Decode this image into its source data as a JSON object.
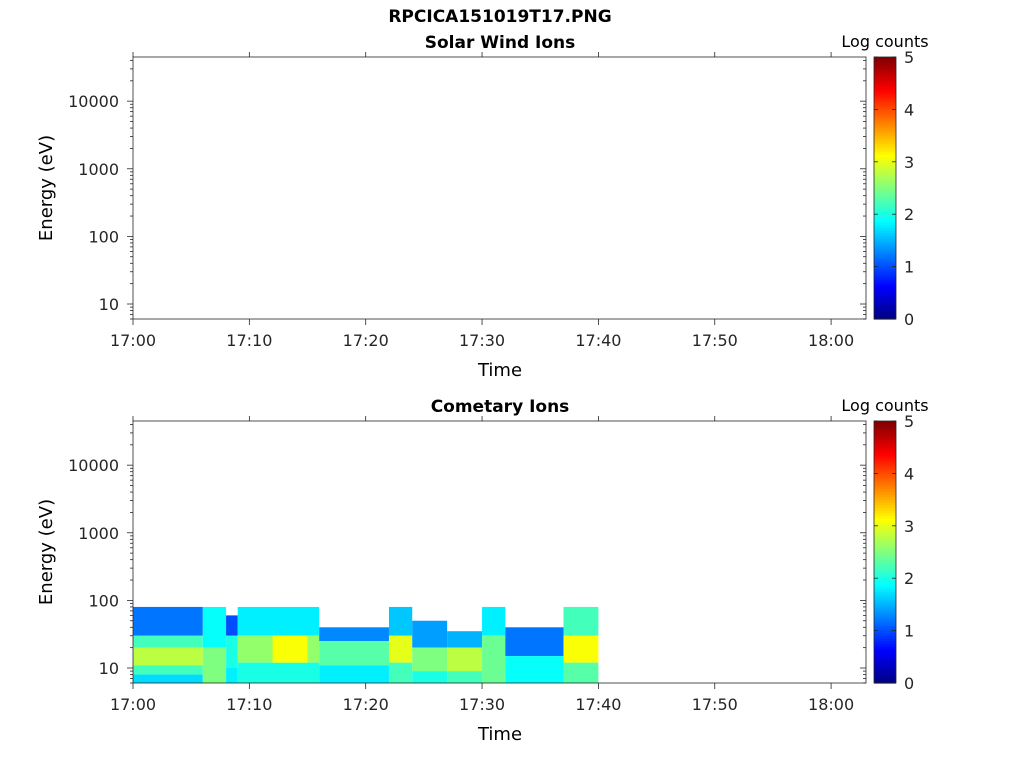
{
  "figure": {
    "title": "RPCICA151019T17.PNG"
  },
  "colors": {
    "colormap": [
      "#00007f",
      "#0000ff",
      "#007fff",
      "#00ffff",
      "#7fff7f",
      "#ffff00",
      "#ff7f00",
      "#ff0000",
      "#7f0000"
    ],
    "axis": "#262626"
  },
  "chart_data": [
    {
      "type": "heatmap",
      "title": "Solar Wind Ions",
      "xlabel": "Time",
      "ylabel": "Energy (eV)",
      "yscale": "log",
      "xlim": [
        "17:00",
        "18:03"
      ],
      "ylim": [
        6,
        45000
      ],
      "xticks": [
        "17:00",
        "17:10",
        "17:20",
        "17:30",
        "17:40",
        "17:50",
        "18:00"
      ],
      "yticks": [
        "10",
        "100",
        "1000",
        "10000"
      ],
      "colorbar": {
        "label": "Log counts",
        "range": [
          0,
          5
        ],
        "ticks": [
          "0",
          "1",
          "2",
          "3",
          "4",
          "5"
        ]
      },
      "cells": []
    },
    {
      "type": "heatmap",
      "title": "Cometary Ions",
      "xlabel": "Time",
      "ylabel": "Energy (eV)",
      "yscale": "log",
      "xlim": [
        "17:00",
        "18:03"
      ],
      "ylim": [
        6,
        45000
      ],
      "xticks": [
        "17:00",
        "17:10",
        "17:20",
        "17:30",
        "17:40",
        "17:50",
        "18:00"
      ],
      "yticks": [
        "10",
        "100",
        "1000",
        "10000"
      ],
      "colorbar": {
        "label": "Log counts",
        "range": [
          0,
          5
        ],
        "ticks": [
          "0",
          "1",
          "2",
          "3",
          "4",
          "5"
        ]
      },
      "cells": [
        {
          "t0": "17:00",
          "t1": "17:06",
          "e0": 30,
          "e1": 80,
          "log_counts": 1.2
        },
        {
          "t0": "17:00",
          "t1": "17:06",
          "e0": 20,
          "e1": 30,
          "log_counts": 2.2
        },
        {
          "t0": "17:00",
          "t1": "17:06",
          "e0": 11,
          "e1": 20,
          "log_counts": 2.8
        },
        {
          "t0": "17:00",
          "t1": "17:06",
          "e0": 8,
          "e1": 11,
          "log_counts": 2.2
        },
        {
          "t0": "17:00",
          "t1": "17:06",
          "e0": 6,
          "e1": 8,
          "log_counts": 1.7
        },
        {
          "t0": "17:06",
          "t1": "17:08",
          "e0": 20,
          "e1": 80,
          "log_counts": 1.9
        },
        {
          "t0": "17:06",
          "t1": "17:08",
          "e0": 6,
          "e1": 20,
          "log_counts": 2.5
        },
        {
          "t0": "17:08",
          "t1": "17:09",
          "e0": 30,
          "e1": 60,
          "log_counts": 1.0
        },
        {
          "t0": "17:08",
          "t1": "17:09",
          "e0": 10,
          "e1": 30,
          "log_counts": 2.0
        },
        {
          "t0": "17:08",
          "t1": "17:09",
          "e0": 6,
          "e1": 10,
          "log_counts": 1.8
        },
        {
          "t0": "17:09",
          "t1": "17:16",
          "e0": 30,
          "e1": 80,
          "log_counts": 1.8
        },
        {
          "t0": "17:09",
          "t1": "17:16",
          "e0": 12,
          "e1": 30,
          "log_counts": 2.6
        },
        {
          "t0": "17:09",
          "t1": "17:16",
          "e0": 6,
          "e1": 12,
          "log_counts": 2.0
        },
        {
          "t0": "17:12",
          "t1": "17:15",
          "e0": 12,
          "e1": 30,
          "log_counts": 3.1
        },
        {
          "t0": "17:16",
          "t1": "17:22",
          "e0": 25,
          "e1": 40,
          "log_counts": 1.3
        },
        {
          "t0": "17:16",
          "t1": "17:22",
          "e0": 11,
          "e1": 25,
          "log_counts": 2.3
        },
        {
          "t0": "17:16",
          "t1": "17:22",
          "e0": 6,
          "e1": 11,
          "log_counts": 1.8
        },
        {
          "t0": "17:22",
          "t1": "17:24",
          "e0": 30,
          "e1": 80,
          "log_counts": 1.6
        },
        {
          "t0": "17:22",
          "t1": "17:24",
          "e0": 12,
          "e1": 30,
          "log_counts": 3.0
        },
        {
          "t0": "17:22",
          "t1": "17:24",
          "e0": 6,
          "e1": 12,
          "log_counts": 2.2
        },
        {
          "t0": "17:24",
          "t1": "17:27",
          "e0": 20,
          "e1": 50,
          "log_counts": 1.4
        },
        {
          "t0": "17:24",
          "t1": "17:27",
          "e0": 9,
          "e1": 20,
          "log_counts": 2.5
        },
        {
          "t0": "17:24",
          "t1": "17:27",
          "e0": 6,
          "e1": 9,
          "log_counts": 2.0
        },
        {
          "t0": "17:27",
          "t1": "17:30",
          "e0": 20,
          "e1": 35,
          "log_counts": 1.5
        },
        {
          "t0": "17:27",
          "t1": "17:30",
          "e0": 9,
          "e1": 20,
          "log_counts": 2.8
        },
        {
          "t0": "17:27",
          "t1": "17:30",
          "e0": 6,
          "e1": 9,
          "log_counts": 2.2
        },
        {
          "t0": "17:30",
          "t1": "17:32",
          "e0": 30,
          "e1": 80,
          "log_counts": 1.8
        },
        {
          "t0": "17:30",
          "t1": "17:32",
          "e0": 6,
          "e1": 30,
          "log_counts": 2.4
        },
        {
          "t0": "17:32",
          "t1": "17:37",
          "e0": 15,
          "e1": 40,
          "log_counts": 1.2
        },
        {
          "t0": "17:32",
          "t1": "17:37",
          "e0": 6,
          "e1": 15,
          "log_counts": 1.9
        },
        {
          "t0": "17:37",
          "t1": "17:40",
          "e0": 30,
          "e1": 80,
          "log_counts": 2.2
        },
        {
          "t0": "17:37",
          "t1": "17:40",
          "e0": 12,
          "e1": 30,
          "log_counts": 3.1
        },
        {
          "t0": "17:37",
          "t1": "17:40",
          "e0": 6,
          "e1": 12,
          "log_counts": 2.3
        }
      ]
    }
  ]
}
